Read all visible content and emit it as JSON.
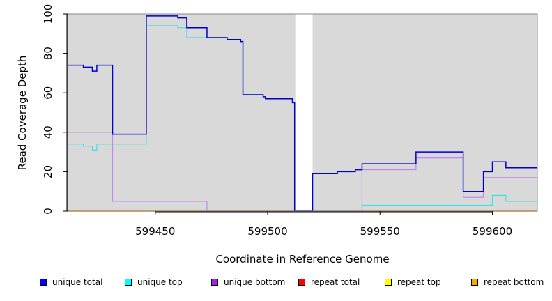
{
  "chart_data": {
    "type": "line",
    "xlabel": "Coordinate in Reference Genome",
    "ylabel": "Read Coverage Depth",
    "xlim": [
      599411,
      599620
    ],
    "ylim": [
      0,
      100
    ],
    "x_ticks": [
      599450,
      599500,
      599550,
      599600
    ],
    "y_ticks": [
      0,
      20,
      40,
      60,
      80,
      100
    ],
    "background": "#d9d9d9",
    "gaps": [
      [
        599512,
        599520
      ]
    ],
    "gap_color": "#ffffff",
    "legend_placement": "bottom",
    "series": [
      {
        "name": "unique total",
        "color": "#0000cc",
        "swatch": "#0000ff",
        "x": [
          599411,
          599418,
          599422,
          599424,
          599431,
          599446,
          599460,
          599464,
          599473,
          599482,
          599488,
          599489,
          599498,
          599499,
          599511,
          599512,
          599520,
          599531,
          599539,
          599542,
          599566,
          599587,
          599596,
          599600,
          599606,
          599620
        ],
        "y": [
          74,
          73,
          71,
          74,
          39,
          99,
          98,
          93,
          88,
          87,
          86,
          59,
          58,
          57,
          55,
          0,
          19,
          20,
          21,
          24,
          30,
          10,
          20,
          25,
          22,
          22
        ]
      },
      {
        "name": "unique top",
        "color": "#40e0e0",
        "swatch": "#00ffff",
        "x": [
          599411,
          599418,
          599422,
          599424,
          599446,
          599460,
          599464,
          599473,
          599482,
          599488,
          599489,
          599498,
          599499,
          599511,
          599512,
          599520,
          599542,
          599600,
          599606,
          599620
        ],
        "y": [
          34,
          33,
          31,
          34,
          94,
          93,
          88,
          88,
          87,
          86,
          59,
          58,
          57,
          55,
          0,
          0,
          3,
          8,
          5,
          5
        ]
      },
      {
        "name": "unique bottom",
        "color": "#bb88ee",
        "swatch": "#a020f0",
        "x": [
          599411,
          599431,
          599473,
          599512,
          599520,
          599542,
          599566,
          599587,
          599596,
          599620
        ],
        "y": [
          40,
          5,
          0,
          0,
          0,
          21,
          27,
          7,
          17,
          17
        ]
      },
      {
        "name": "repeat total",
        "color": "#ff0000",
        "swatch": "#ff0000",
        "x": [
          599411,
          599620
        ],
        "y": [
          0,
          0
        ]
      },
      {
        "name": "repeat top",
        "color": "#ffff00",
        "swatch": "#ffff00",
        "x": [
          599411,
          599620
        ],
        "y": [
          0,
          0
        ]
      },
      {
        "name": "repeat bottom",
        "color": "#ffa500",
        "swatch": "#ffa500",
        "x": [
          599411,
          599620
        ],
        "y": [
          0,
          0
        ]
      }
    ]
  }
}
